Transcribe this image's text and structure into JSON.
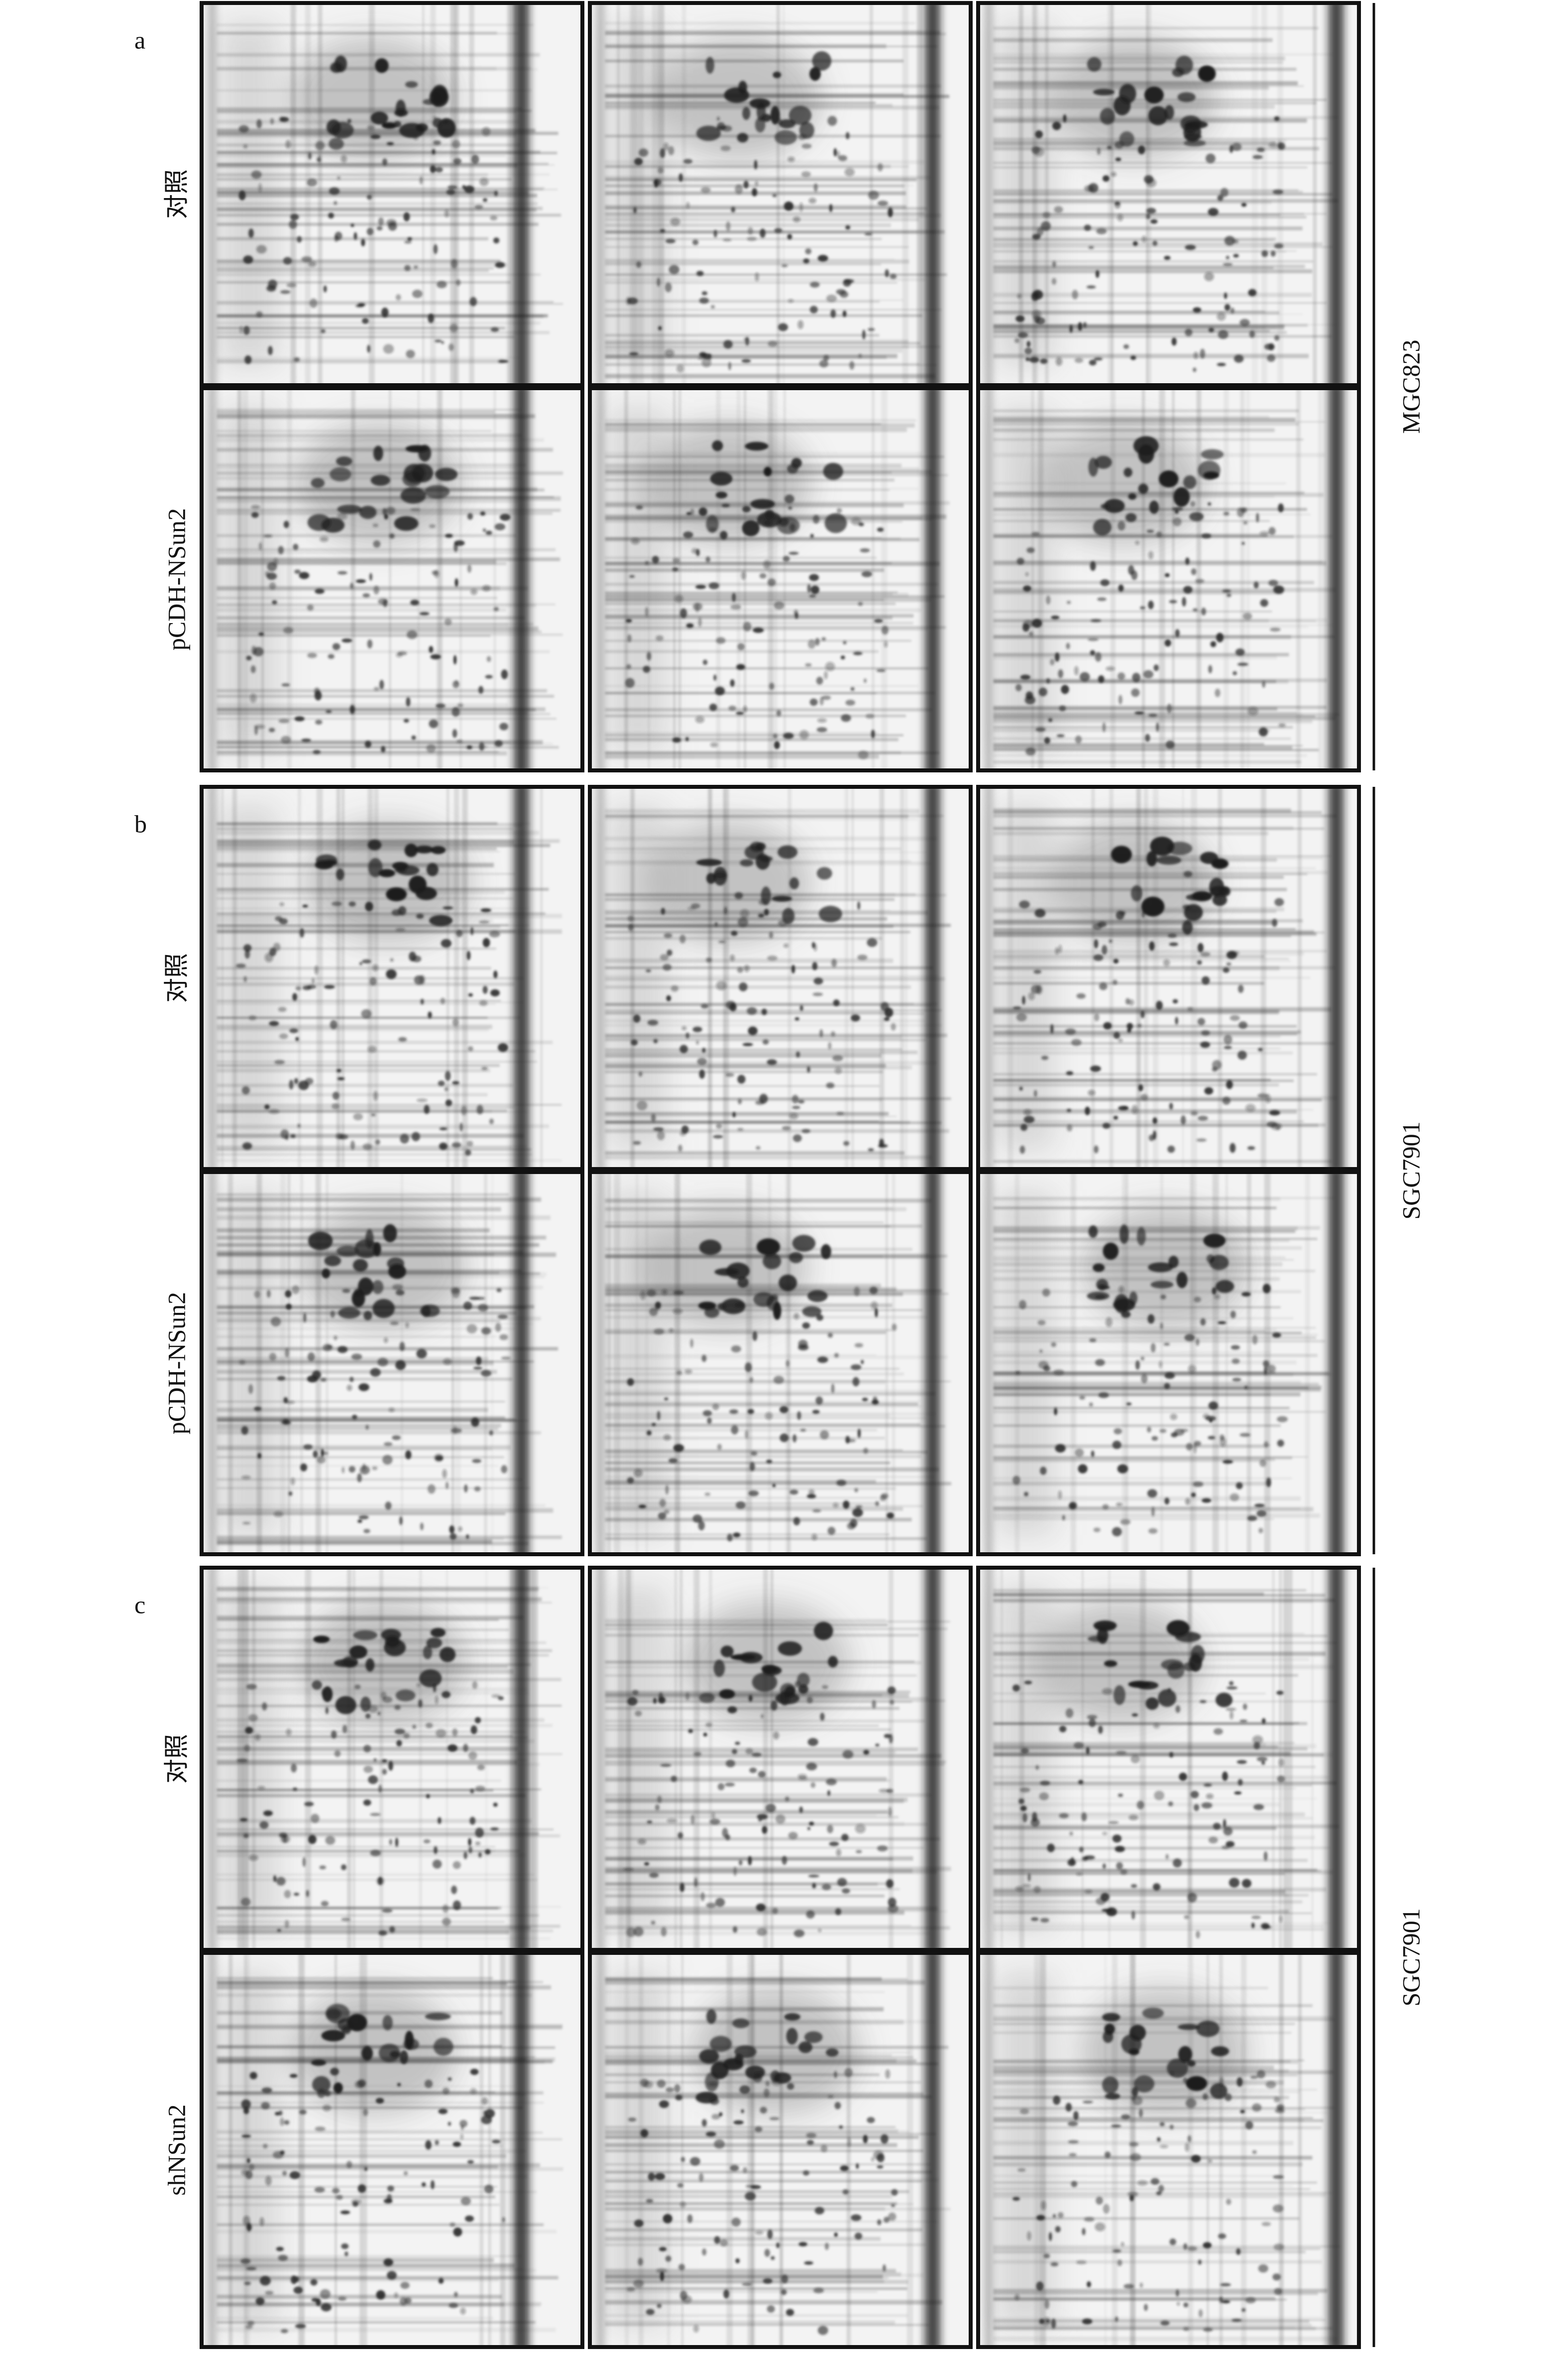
{
  "panels": [
    {
      "label": "a",
      "cell_line": "MGC823",
      "rows": [
        "对照",
        "pCDH-NSun2"
      ]
    },
    {
      "label": "b",
      "cell_line": "SGC7901",
      "rows": [
        "对照",
        "pCDH-NSun2"
      ]
    },
    {
      "label": "c",
      "cell_line": "SGC7901",
      "rows": [
        "对照",
        "shNSun2"
      ]
    }
  ]
}
